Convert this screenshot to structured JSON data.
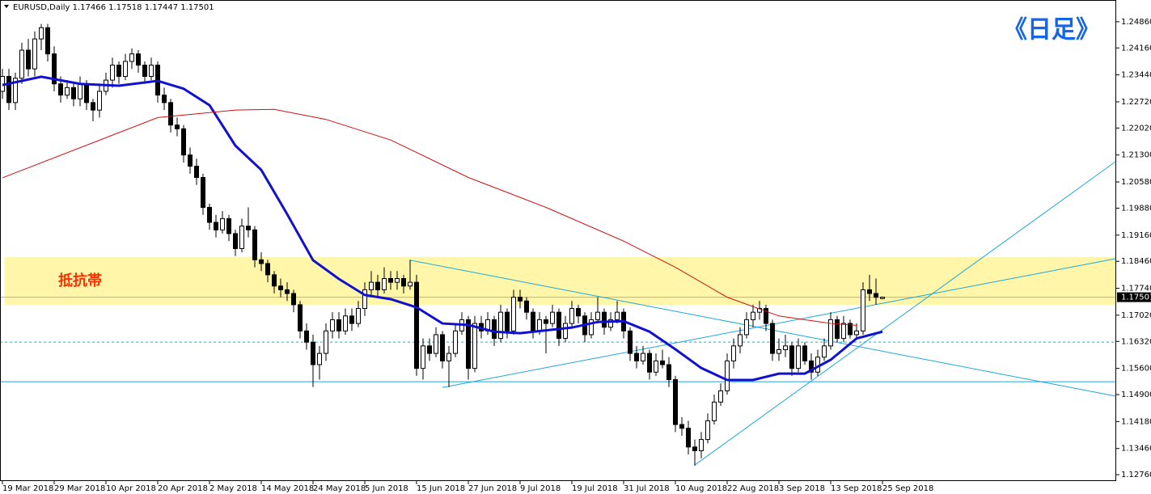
{
  "chart_data": {
    "type": "candlestick",
    "title": "EURUSD,Daily",
    "corner_label": "《日足》",
    "zone_label": "抵抗帯",
    "up_color": "#ffffff",
    "down_color": "#000000",
    "xlim": [
      -0.375,
      172.125
    ],
    "ylim": [
      1.1259,
      1.2544
    ],
    "yticks": [
      {
        "value": 1.2486,
        "label": "1.24860"
      },
      {
        "value": 1.2416,
        "label": "1.24160"
      },
      {
        "value": 1.2344,
        "label": "1.23440"
      },
      {
        "value": 1.2272,
        "label": "1.22720"
      },
      {
        "value": 1.2202,
        "label": "1.22020"
      },
      {
        "value": 1.213,
        "label": "1.21300"
      },
      {
        "value": 1.2058,
        "label": "1.20580"
      },
      {
        "value": 1.1988,
        "label": "1.19880"
      },
      {
        "value": 1.1916,
        "label": "1.19160"
      },
      {
        "value": 1.1846,
        "label": "1.18460"
      },
      {
        "value": 1.1774,
        "label": "1.17740"
      },
      {
        "value": 1.1702,
        "label": "1.17020"
      },
      {
        "value": 1.1632,
        "label": "1.16320"
      },
      {
        "value": 1.156,
        "label": "1.15600"
      },
      {
        "value": 1.149,
        "label": "1.14900"
      },
      {
        "value": 1.1418,
        "label": "1.14180"
      },
      {
        "value": 1.1346,
        "label": "1.13460"
      },
      {
        "value": 1.1276,
        "label": "1.12760"
      }
    ],
    "xticks": [
      {
        "value": 0,
        "label": "19 Mar 2018"
      },
      {
        "value": 8,
        "label": "29 Mar 2018"
      },
      {
        "value": 16,
        "label": "10 Apr 2018"
      },
      {
        "value": 24,
        "label": "20 Apr 2018"
      },
      {
        "value": 32,
        "label": "2 May 2018"
      },
      {
        "value": 40,
        "label": "14 May 2018"
      },
      {
        "value": 48,
        "label": "24 May 2018"
      },
      {
        "value": 56,
        "label": "5 Jun 2018"
      },
      {
        "value": 64,
        "label": "15 Jun 2018"
      },
      {
        "value": 72,
        "label": "27 Jun 2018"
      },
      {
        "value": 80,
        "label": "9 Jul 2018"
      },
      {
        "value": 88,
        "label": "19 Jul 2018"
      },
      {
        "value": 96,
        "label": "31 Jul 2018"
      },
      {
        "value": 104,
        "label": "10 Aug 2018"
      },
      {
        "value": 112,
        "label": "22 Aug 2018"
      },
      {
        "value": 120,
        "label": "3 Sep 2018"
      },
      {
        "value": 128,
        "label": "13 Sep 2018"
      },
      {
        "value": 136,
        "label": "25 Sep 2018"
      }
    ],
    "zone": [
      1.173,
      1.1857
    ],
    "zone_color": "#fff59a",
    "hlines": [
      {
        "value": 1.15245,
        "color": "#1ea7d8",
        "dash": false
      },
      {
        "value": 1.16303,
        "color": "#1ea7d8",
        "dash": true
      },
      {
        "value": 1.17501,
        "color": "#b0b0b0",
        "dash": false
      }
    ],
    "trendlines": [
      {
        "color": "#1ea7d8",
        "x": [
          63,
          172
        ],
        "values": [
          1.1849,
          1.1486
        ]
      },
      {
        "color": "#1ea7d8",
        "x": [
          68,
          172
        ],
        "values": [
          1.1509,
          1.1853
        ]
      },
      {
        "color": "#1ea7d8",
        "x": [
          107,
          172
        ],
        "values": [
          1.1302,
          1.2112
        ]
      }
    ],
    "moving_averages": [
      {
        "color": "#1010d0",
        "width": 3,
        "x": [
          0,
          6,
          12,
          18,
          24,
          28,
          32,
          36,
          40,
          44,
          48,
          52,
          56,
          60,
          64,
          68,
          72,
          76,
          80,
          88,
          92,
          96,
          100,
          104,
          108,
          112,
          116,
          120,
          124,
          128,
          132,
          136
        ],
        "values": [
          1.2317,
          1.2339,
          1.232,
          1.2315,
          1.2328,
          1.2307,
          1.2263,
          1.2155,
          1.209,
          1.1972,
          1.1849,
          1.1799,
          1.1756,
          1.1745,
          1.1723,
          1.168,
          1.1676,
          1.1658,
          1.1654,
          1.1669,
          1.1684,
          1.1686,
          1.1658,
          1.1611,
          1.1561,
          1.1529,
          1.1529,
          1.1546,
          1.1546,
          1.1583,
          1.164,
          1.1658
        ]
      },
      {
        "color": "#d01010",
        "width": 1,
        "x": [
          0,
          24,
          36,
          42,
          50,
          60,
          72,
          84,
          96,
          104,
          112,
          120,
          128,
          132
        ],
        "values": [
          1.2069,
          1.223,
          1.225,
          1.2252,
          1.2225,
          1.217,
          1.207,
          1.199,
          1.19,
          1.183,
          1.175,
          1.17,
          1.168,
          1.1675
        ]
      }
    ],
    "ohlc": [
      [
        1.23,
        1.236,
        1.228,
        1.234
      ],
      [
        1.234,
        1.236,
        1.225,
        1.227
      ],
      [
        1.227,
        1.235,
        1.225,
        1.2335
      ],
      [
        1.2335,
        1.243,
        1.232,
        1.241
      ],
      [
        1.241,
        1.244,
        1.234,
        1.236
      ],
      [
        1.236,
        1.246,
        1.234,
        1.244
      ],
      [
        1.244,
        1.248,
        1.241,
        1.247
      ],
      [
        1.247,
        1.248,
        1.238,
        1.24
      ],
      [
        1.24,
        1.242,
        1.23,
        1.232
      ],
      [
        1.232,
        1.234,
        1.227,
        1.229
      ],
      [
        1.229,
        1.233,
        1.228,
        1.231
      ],
      [
        1.231,
        1.232,
        1.226,
        1.228
      ],
      [
        1.228,
        1.234,
        1.226,
        1.232
      ],
      [
        1.232,
        1.233,
        1.225,
        1.227
      ],
      [
        1.227,
        1.228,
        1.222,
        1.225
      ],
      [
        1.225,
        1.232,
        1.223,
        1.23
      ],
      [
        1.23,
        1.235,
        1.229,
        1.233
      ],
      [
        1.233,
        1.239,
        1.231,
        1.237
      ],
      [
        1.237,
        1.238,
        1.232,
        1.234
      ],
      [
        1.234,
        1.24,
        1.233,
        1.238
      ],
      [
        1.238,
        1.2415,
        1.236,
        1.24
      ],
      [
        1.24,
        1.241,
        1.235,
        1.237
      ],
      [
        1.237,
        1.238,
        1.232,
        1.234
      ],
      [
        1.234,
        1.239,
        1.233,
        1.237
      ],
      [
        1.237,
        1.238,
        1.227,
        1.229
      ],
      [
        1.229,
        1.231,
        1.225,
        1.227
      ],
      [
        1.227,
        1.228,
        1.219,
        1.221
      ],
      [
        1.221,
        1.223,
        1.218,
        1.22
      ],
      [
        1.22,
        1.221,
        1.211,
        1.213
      ],
      [
        1.213,
        1.215,
        1.208,
        1.21
      ],
      [
        1.21,
        1.212,
        1.205,
        1.207
      ],
      [
        1.207,
        1.208,
        1.197,
        1.199
      ],
      [
        1.199,
        1.2,
        1.193,
        1.195
      ],
      [
        1.195,
        1.197,
        1.191,
        1.193
      ],
      [
        1.193,
        1.198,
        1.192,
        1.196
      ],
      [
        1.196,
        1.197,
        1.19,
        1.192
      ],
      [
        1.192,
        1.193,
        1.186,
        1.188
      ],
      [
        1.188,
        1.196,
        1.187,
        1.194
      ],
      [
        1.194,
        1.199,
        1.191,
        1.193
      ],
      [
        1.193,
        1.194,
        1.183,
        1.185
      ],
      [
        1.185,
        1.187,
        1.182,
        1.184
      ],
      [
        1.184,
        1.185,
        1.179,
        1.181
      ],
      [
        1.181,
        1.182,
        1.176,
        1.178
      ],
      [
        1.178,
        1.18,
        1.175,
        1.177
      ],
      [
        1.177,
        1.179,
        1.174,
        1.176
      ],
      [
        1.176,
        1.177,
        1.171,
        1.173
      ],
      [
        1.173,
        1.174,
        1.164,
        1.166
      ],
      [
        1.166,
        1.168,
        1.161,
        1.163
      ],
      [
        1.163,
        1.165,
        1.151,
        1.157
      ],
      [
        1.157,
        1.162,
        1.153,
        1.16
      ],
      [
        1.16,
        1.168,
        1.158,
        1.166
      ],
      [
        1.166,
        1.171,
        1.164,
        1.169
      ],
      [
        1.169,
        1.171,
        1.164,
        1.166
      ],
      [
        1.166,
        1.172,
        1.165,
        1.17
      ],
      [
        1.17,
        1.172,
        1.166,
        1.168
      ],
      [
        1.168,
        1.174,
        1.167,
        1.172
      ],
      [
        1.172,
        1.179,
        1.17,
        1.177
      ],
      [
        1.177,
        1.182,
        1.175,
        1.179
      ],
      [
        1.179,
        1.181,
        1.175,
        1.177
      ],
      [
        1.177,
        1.183,
        1.176,
        1.18
      ],
      [
        1.18,
        1.182,
        1.177,
        1.179
      ],
      [
        1.179,
        1.182,
        1.177,
        1.18
      ],
      [
        1.18,
        1.181,
        1.176,
        1.178
      ],
      [
        1.178,
        1.185,
        1.177,
        1.179
      ],
      [
        1.179,
        1.181,
        1.154,
        1.156
      ],
      [
        1.156,
        1.164,
        1.153,
        1.162
      ],
      [
        1.162,
        1.164,
        1.158,
        1.16
      ],
      [
        1.16,
        1.167,
        1.159,
        1.165
      ],
      [
        1.165,
        1.166,
        1.156,
        1.158
      ],
      [
        1.158,
        1.162,
        1.151,
        1.16
      ],
      [
        1.16,
        1.168,
        1.159,
        1.166
      ],
      [
        1.166,
        1.171,
        1.165,
        1.169
      ],
      [
        1.169,
        1.17,
        1.153,
        1.156
      ],
      [
        1.156,
        1.17,
        1.155,
        1.168
      ],
      [
        1.168,
        1.17,
        1.164,
        1.166
      ],
      [
        1.166,
        1.171,
        1.165,
        1.169
      ],
      [
        1.169,
        1.17,
        1.162,
        1.164
      ],
      [
        1.164,
        1.173,
        1.163,
        1.171
      ],
      [
        1.171,
        1.172,
        1.164,
        1.166
      ],
      [
        1.166,
        1.177,
        1.165,
        1.175
      ],
      [
        1.175,
        1.177,
        1.172,
        1.174
      ],
      [
        1.174,
        1.175,
        1.169,
        1.171
      ],
      [
        1.171,
        1.172,
        1.164,
        1.166
      ],
      [
        1.166,
        1.171,
        1.165,
        1.169
      ],
      [
        1.169,
        1.17,
        1.16,
        1.168
      ],
      [
        1.168,
        1.173,
        1.167,
        1.171
      ],
      [
        1.171,
        1.172,
        1.162,
        1.164
      ],
      [
        1.164,
        1.17,
        1.163,
        1.168
      ],
      [
        1.168,
        1.174,
        1.167,
        1.172
      ],
      [
        1.172,
        1.173,
        1.168,
        1.17
      ],
      [
        1.17,
        1.171,
        1.163,
        1.165
      ],
      [
        1.165,
        1.171,
        1.164,
        1.169
      ],
      [
        1.169,
        1.175,
        1.168,
        1.171
      ],
      [
        1.171,
        1.172,
        1.165,
        1.167
      ],
      [
        1.167,
        1.171,
        1.166,
        1.169
      ],
      [
        1.169,
        1.174,
        1.168,
        1.171
      ],
      [
        1.171,
        1.172,
        1.164,
        1.166
      ],
      [
        1.166,
        1.167,
        1.158,
        1.16
      ],
      [
        1.16,
        1.162,
        1.156,
        1.158
      ],
      [
        1.158,
        1.162,
        1.157,
        1.16
      ],
      [
        1.16,
        1.161,
        1.153,
        1.155
      ],
      [
        1.155,
        1.16,
        1.154,
        1.158
      ],
      [
        1.158,
        1.161,
        1.156,
        1.157
      ],
      [
        1.157,
        1.159,
        1.151,
        1.153
      ],
      [
        1.153,
        1.154,
        1.139,
        1.141
      ],
      [
        1.141,
        1.143,
        1.138,
        1.14
      ],
      [
        1.14,
        1.142,
        1.133,
        1.135
      ],
      [
        1.135,
        1.137,
        1.13,
        1.134
      ],
      [
        1.134,
        1.139,
        1.132,
        1.137
      ],
      [
        1.137,
        1.144,
        1.136,
        1.142
      ],
      [
        1.142,
        1.149,
        1.141,
        1.147
      ],
      [
        1.147,
        1.152,
        1.146,
        1.15
      ],
      [
        1.15,
        1.16,
        1.149,
        1.158
      ],
      [
        1.158,
        1.164,
        1.156,
        1.162
      ],
      [
        1.162,
        1.167,
        1.16,
        1.165
      ],
      [
        1.165,
        1.171,
        1.164,
        1.169
      ],
      [
        1.169,
        1.173,
        1.167,
        1.171
      ],
      [
        1.171,
        1.174,
        1.169,
        1.172
      ],
      [
        1.172,
        1.173,
        1.166,
        1.168
      ],
      [
        1.168,
        1.169,
        1.158,
        1.16
      ],
      [
        1.16,
        1.164,
        1.158,
        1.161
      ],
      [
        1.161,
        1.165,
        1.159,
        1.162
      ],
      [
        1.162,
        1.163,
        1.154,
        1.156
      ],
      [
        1.156,
        1.164,
        1.155,
        1.162
      ],
      [
        1.162,
        1.163,
        1.157,
        1.158
      ],
      [
        1.158,
        1.16,
        1.153,
        1.155
      ],
      [
        1.155,
        1.161,
        1.154,
        1.159
      ],
      [
        1.159,
        1.164,
        1.158,
        1.162
      ],
      [
        1.162,
        1.171,
        1.161,
        1.169
      ],
      [
        1.169,
        1.17,
        1.163,
        1.164
      ],
      [
        1.164,
        1.17,
        1.163,
        1.168
      ],
      [
        1.168,
        1.169,
        1.164,
        1.165
      ],
      [
        1.165,
        1.168,
        1.164,
        1.166
      ],
      [
        1.166,
        1.179,
        1.165,
        1.177
      ],
      [
        1.177,
        1.181,
        1.174,
        1.176
      ],
      [
        1.176,
        1.18,
        1.173,
        1.175
      ],
      [
        1.17466,
        1.17518,
        1.17447,
        1.17501
      ]
    ]
  }
}
